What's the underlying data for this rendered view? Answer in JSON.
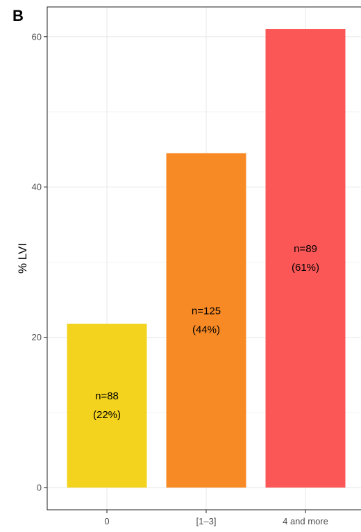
{
  "panel_label": "B",
  "chart_data": {
    "type": "bar",
    "title": "",
    "xlabel": "",
    "ylabel": "% LVI",
    "categories": [
      "0",
      "[1–3]",
      "4 and more"
    ],
    "values": [
      21.8,
      44.5,
      61.0
    ],
    "bar_labels": [
      [
        "n=88",
        "(22%)"
      ],
      [
        "n=125",
        "(44%)"
      ],
      [
        "n=89",
        "(61%)"
      ]
    ],
    "colors": [
      "#F3D31E",
      "#F88A26",
      "#FC5757"
    ],
    "ylim": [
      -1.5,
      64
    ],
    "yticks": [
      0,
      20,
      40,
      60
    ],
    "grid": true
  }
}
